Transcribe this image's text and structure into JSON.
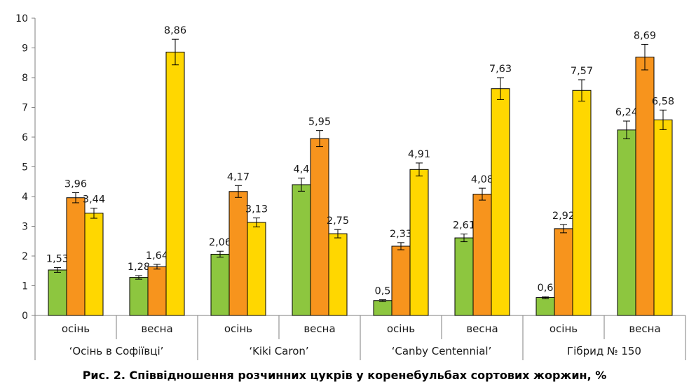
{
  "caption": "Рис. 2. Співвідношення розчинних цукрів у коренебульбах сортових жоржин, %",
  "chart_data": {
    "type": "bar",
    "title": "Рис. 2. Співвідношення розчинних цукрів у коренебульбах сортових жоржин, %",
    "ylim": [
      0,
      10
    ],
    "yticks": [
      "0",
      "1",
      "2",
      "3",
      "4",
      "5",
      "6",
      "7",
      "8",
      "9",
      "10"
    ],
    "grid": false,
    "legend": "none",
    "groups": [
      {
        "name": "‘Осінь в Софіївці’",
        "subcategories": [
          "осінь",
          "весна"
        ]
      },
      {
        "name": "‘Kiki Caron’",
        "subcategories": [
          "осінь",
          "весна"
        ]
      },
      {
        "name": "‘Canby Centennial’",
        "subcategories": [
          "осінь",
          "весна"
        ]
      },
      {
        "name": "Гібрид № 150",
        "subcategories": [
          "осінь",
          "весна"
        ]
      }
    ],
    "categories": [
      "осінь",
      "весна",
      "осінь",
      "весна",
      "осінь",
      "весна",
      "осінь",
      "весна"
    ],
    "series": [
      {
        "color": "#8dc63f",
        "values": [
          1.53,
          1.28,
          2.06,
          4.4,
          0.5,
          2.61,
          0.6,
          6.24
        ],
        "labels": [
          "1,53",
          "1,28",
          "2,06",
          "4,4",
          "0,5",
          "2,61",
          "0,6",
          "6,24"
        ],
        "errors": [
          0.08,
          0.06,
          0.1,
          0.22,
          0.03,
          0.13,
          0.03,
          0.3
        ]
      },
      {
        "color": "#f7941d",
        "values": [
          3.96,
          1.64,
          4.17,
          5.95,
          2.33,
          4.08,
          2.92,
          8.69
        ],
        "labels": [
          "3,96",
          "1,64",
          "4,17",
          "5,95",
          "2,33",
          "4,08",
          "2,92",
          "8,69"
        ],
        "errors": [
          0.17,
          0.08,
          0.2,
          0.27,
          0.12,
          0.2,
          0.14,
          0.43
        ]
      },
      {
        "color": "#ffd700",
        "values": [
          3.44,
          8.86,
          3.13,
          2.75,
          4.91,
          7.63,
          7.57,
          6.58
        ],
        "labels": [
          "3,44",
          "8,86",
          "3,13",
          "2,75",
          "4,91",
          "7,63",
          "7,57",
          "6,58"
        ],
        "errors": [
          0.17,
          0.43,
          0.15,
          0.14,
          0.22,
          0.37,
          0.36,
          0.33
        ]
      }
    ]
  }
}
